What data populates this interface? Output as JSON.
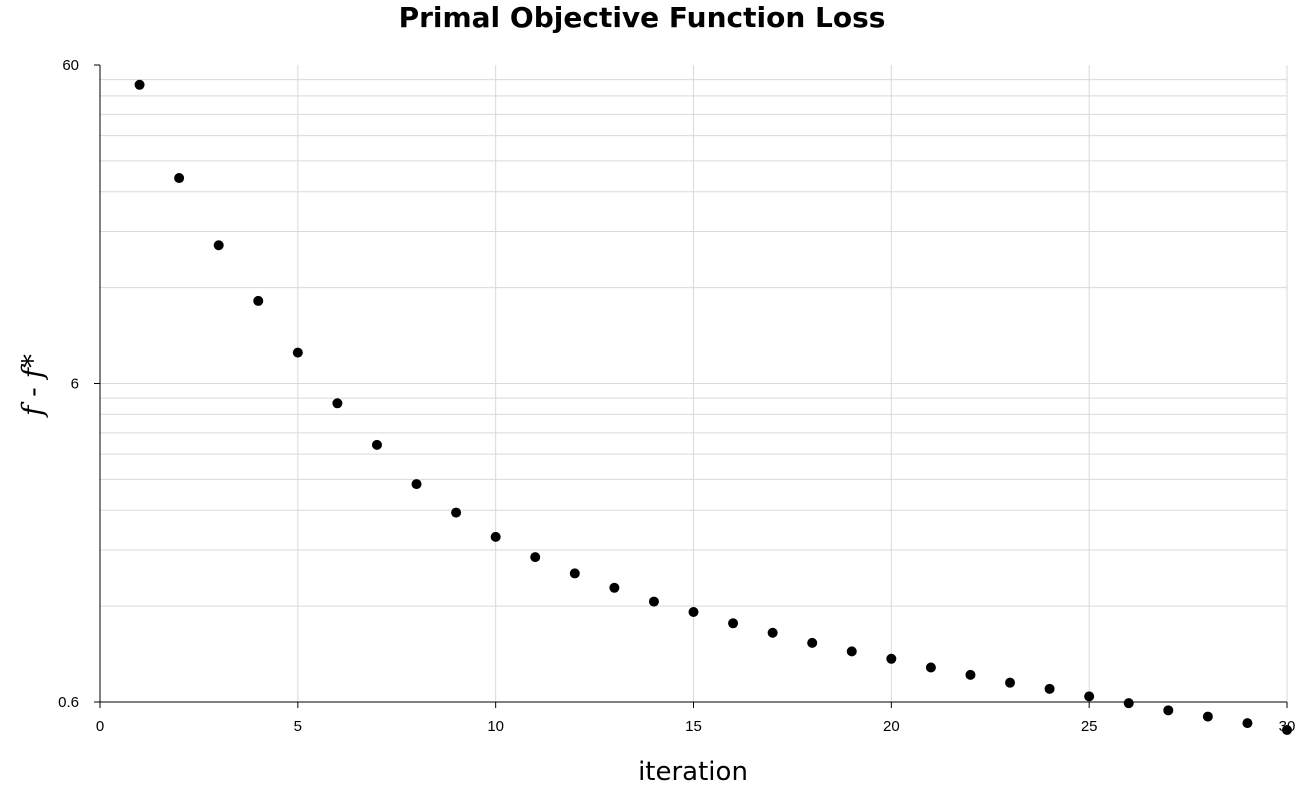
{
  "chart_data": {
    "type": "scatter",
    "title": "Primal Objective Function Loss",
    "xlabel": "iteration",
    "ylabel": "f - f*",
    "xlim": [
      0,
      30
    ],
    "ylim": [
      0.6,
      60
    ],
    "y_scale": "log",
    "x_ticks": [
      "0",
      "5",
      "10",
      "15",
      "20",
      "25",
      "30"
    ],
    "y_ticks": [
      "0.6",
      "6",
      "60"
    ],
    "grid": true,
    "marker_color": "#000000",
    "series": [
      {
        "x": [
          1,
          2,
          3,
          4,
          5,
          6,
          7,
          8,
          9,
          10,
          11,
          12,
          13,
          14,
          15,
          16,
          17,
          18,
          19,
          20,
          21,
          22,
          23,
          24,
          25,
          26,
          27,
          28,
          29,
          30
        ],
        "y": [
          52,
          26.5,
          16.3,
          10.9,
          7.5,
          5.2,
          3.85,
          2.9,
          2.36,
          1.98,
          1.71,
          1.52,
          1.37,
          1.24,
          1.15,
          1.06,
          0.99,
          0.92,
          0.865,
          0.82,
          0.77,
          0.73,
          0.69,
          0.66,
          0.625,
          0.595,
          0.565,
          0.54,
          0.515,
          0.49
        ]
      }
    ]
  }
}
